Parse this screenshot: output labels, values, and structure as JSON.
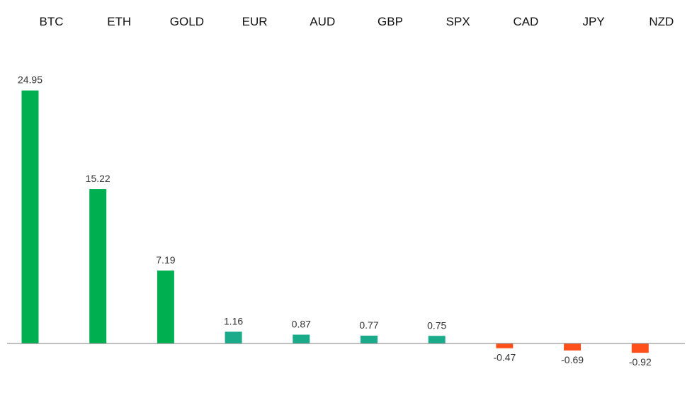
{
  "chart_data": {
    "type": "bar",
    "categories": [
      "BTC",
      "ETH",
      "GOLD",
      "EUR",
      "AUD",
      "GBP",
      "SPX",
      "CAD",
      "JPY",
      "NZD"
    ],
    "values": [
      24.95,
      15.22,
      7.19,
      1.16,
      0.87,
      0.77,
      0.75,
      -0.47,
      -0.69,
      -0.92
    ],
    "value_labels": [
      "24.95",
      "15.22",
      "7.19",
      "1.16",
      "0.87",
      "0.77",
      "0.75",
      "-0.47",
      "-0.69",
      "-0.92"
    ],
    "title": "",
    "xlabel": "",
    "ylabel": "",
    "ylim": [
      -2.5,
      27
    ],
    "grid": false,
    "legend": "none",
    "category_labels_position": "top",
    "colors": {
      "large_positive": "#00b050",
      "small_positive": "#1aab8a",
      "negative": "#ff4f1a",
      "axis": "#7f7f7f",
      "text": "#111111"
    }
  }
}
